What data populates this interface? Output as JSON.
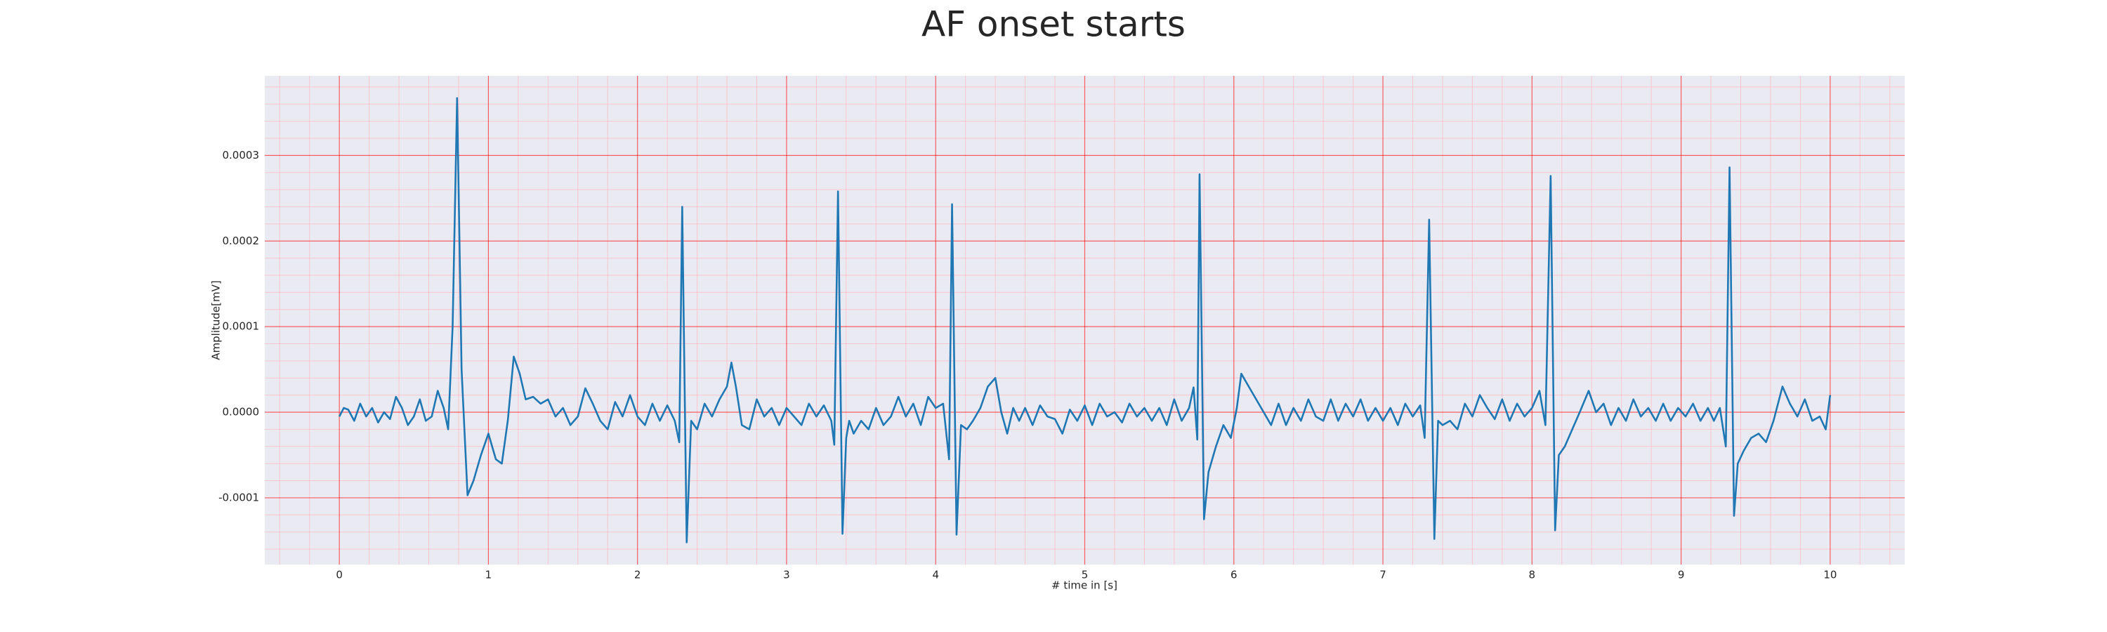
{
  "chart_data": {
    "type": "line",
    "title": "AF onset starts",
    "x_label": "# time in [s]",
    "y_label": "Amplitude[mV]",
    "color": "#1f77b4",
    "grid": true,
    "minor_grid": true,
    "xlim": [
      -0.5,
      10.5
    ],
    "ylim": [
      -0.000178,
      0.000393
    ],
    "xticks": [
      0,
      1,
      2,
      3,
      4,
      5,
      6,
      7,
      8,
      9,
      10
    ],
    "yticks": [
      -0.0001,
      {
        "value": 0,
        "label": "0.0000"
      },
      0.0001,
      0.0002,
      0.0003
    ],
    "x": [
      0,
      0.03,
      0.06,
      0.1,
      0.14,
      0.18,
      0.22,
      0.26,
      0.3,
      0.34,
      0.38,
      0.42,
      0.46,
      0.5,
      0.54,
      0.58,
      0.62,
      0.66,
      0.7,
      0.73,
      0.76,
      0.79,
      0.82,
      0.86,
      0.9,
      0.95,
      1.0,
      1.05,
      1.09,
      1.13,
      1.17,
      1.21,
      1.25,
      1.3,
      1.35,
      1.4,
      1.45,
      1.5,
      1.55,
      1.6,
      1.65,
      1.7,
      1.75,
      1.8,
      1.85,
      1.9,
      1.95,
      2.0,
      2.05,
      2.1,
      2.15,
      2.2,
      2.25,
      2.28,
      2.3,
      2.33,
      2.36,
      2.4,
      2.45,
      2.5,
      2.55,
      2.6,
      2.63,
      2.66,
      2.7,
      2.75,
      2.8,
      2.85,
      2.9,
      2.95,
      3.0,
      3.05,
      3.1,
      3.15,
      3.2,
      3.25,
      3.3,
      3.32,
      3.345,
      3.375,
      3.4,
      3.42,
      3.45,
      3.5,
      3.55,
      3.6,
      3.65,
      3.7,
      3.75,
      3.8,
      3.85,
      3.9,
      3.95,
      4.0,
      4.05,
      4.09,
      4.11,
      4.14,
      4.17,
      4.21,
      4.25,
      4.3,
      4.35,
      4.4,
      4.44,
      4.48,
      4.52,
      4.56,
      4.6,
      4.65,
      4.7,
      4.75,
      4.8,
      4.85,
      4.9,
      4.95,
      5.0,
      5.05,
      5.1,
      5.15,
      5.2,
      5.25,
      5.3,
      5.35,
      5.4,
      5.45,
      5.5,
      5.55,
      5.6,
      5.65,
      5.7,
      5.73,
      5.755,
      5.77,
      5.8,
      5.83,
      5.88,
      5.93,
      5.98,
      6.02,
      6.05,
      6.1,
      6.15,
      6.2,
      6.25,
      6.3,
      6.35,
      6.4,
      6.45,
      6.5,
      6.55,
      6.6,
      6.65,
      6.7,
      6.75,
      6.8,
      6.85,
      6.9,
      6.95,
      7.0,
      7.05,
      7.1,
      7.15,
      7.2,
      7.25,
      7.28,
      7.31,
      7.345,
      7.37,
      7.4,
      7.45,
      7.5,
      7.55,
      7.6,
      7.65,
      7.7,
      7.75,
      7.8,
      7.85,
      7.9,
      7.95,
      8.0,
      8.05,
      8.09,
      8.125,
      8.155,
      8.18,
      8.22,
      8.27,
      8.32,
      8.38,
      8.43,
      8.48,
      8.53,
      8.58,
      8.63,
      8.68,
      8.73,
      8.78,
      8.83,
      8.88,
      8.93,
      8.98,
      9.03,
      9.08,
      9.13,
      9.18,
      9.22,
      9.26,
      9.3,
      9.325,
      9.355,
      9.38,
      9.42,
      9.47,
      9.52,
      9.57,
      9.62,
      9.68,
      9.73,
      9.78,
      9.83,
      9.88,
      9.93,
      9.97,
      10.0
    ],
    "values": [
      -5e-06,
      5e-06,
      3e-06,
      -1e-05,
      1e-05,
      -5e-06,
      5e-06,
      -1.2e-05,
      0,
      -8e-06,
      1.8e-05,
      5e-06,
      -1.5e-05,
      -5e-06,
      1.5e-05,
      -1e-05,
      -5e-06,
      2.5e-05,
      5e-06,
      -2e-05,
      0.0001,
      0.000367,
      5e-05,
      -9.7e-05,
      -8e-05,
      -5e-05,
      -2.5e-05,
      -5.5e-05,
      -6e-05,
      -1e-05,
      6.5e-05,
      4.5e-05,
      1.5e-05,
      1.8e-05,
      1e-05,
      1.5e-05,
      -5e-06,
      5e-06,
      -1.5e-05,
      -5e-06,
      2.8e-05,
      1e-05,
      -1e-05,
      -2e-05,
      1.2e-05,
      -5e-06,
      2e-05,
      -5e-06,
      -1.5e-05,
      1e-05,
      -1e-05,
      8e-06,
      -1e-05,
      -3.5e-05,
      0.00024,
      -0.000152,
      -1e-05,
      -2e-05,
      1e-05,
      -5e-06,
      1.5e-05,
      3e-05,
      5.8e-05,
      3e-05,
      -1.5e-05,
      -2e-05,
      1.5e-05,
      -5e-06,
      5e-06,
      -1.5e-05,
      5e-06,
      -5e-06,
      -1.5e-05,
      1e-05,
      -5e-06,
      8e-06,
      -1e-05,
      -3.8e-05,
      0.000258,
      -0.000142,
      -3e-05,
      -1e-05,
      -2.5e-05,
      -1e-05,
      -2e-05,
      5e-06,
      -1.5e-05,
      -5e-06,
      1.8e-05,
      -5e-06,
      1e-05,
      -1.5e-05,
      1.8e-05,
      5e-06,
      1e-05,
      -5.5e-05,
      0.000243,
      -0.000143,
      -1.5e-05,
      -2e-05,
      -1e-05,
      5e-06,
      3e-05,
      4e-05,
      0,
      -2.5e-05,
      5e-06,
      -1e-05,
      5e-06,
      -1.5e-05,
      8e-06,
      -5e-06,
      -8e-06,
      -2.5e-05,
      3e-06,
      -1e-05,
      8e-06,
      -1.5e-05,
      1e-05,
      -5e-06,
      0,
      -1.2e-05,
      1e-05,
      -5e-06,
      5e-06,
      -1e-05,
      5e-06,
      -1.5e-05,
      1.5e-05,
      -1e-05,
      5e-06,
      2.9e-05,
      -3.2e-05,
      0.000278,
      -0.000125,
      -7e-05,
      -4e-05,
      -1.5e-05,
      -3e-05,
      5e-06,
      4.5e-05,
      3e-05,
      1.5e-05,
      0,
      -1.5e-05,
      1e-05,
      -1.5e-05,
      5e-06,
      -1e-05,
      1.5e-05,
      -5e-06,
      -1e-05,
      1.5e-05,
      -1e-05,
      1e-05,
      -5e-06,
      1.5e-05,
      -1e-05,
      5e-06,
      -1e-05,
      5e-06,
      -1.5e-05,
      1e-05,
      -5e-06,
      8e-06,
      -3e-05,
      0.000225,
      -0.000148,
      -1e-05,
      -1.5e-05,
      -1e-05,
      -2e-05,
      1e-05,
      -5e-06,
      2e-05,
      5e-06,
      -8e-06,
      1.5e-05,
      -1e-05,
      1e-05,
      -5e-06,
      5e-06,
      2.5e-05,
      -1.5e-05,
      0.000276,
      -0.000138,
      -5e-05,
      -4e-05,
      -2e-05,
      0,
      2.5e-05,
      0,
      1e-05,
      -1.5e-05,
      5e-06,
      -1e-05,
      1.5e-05,
      -5e-06,
      5e-06,
      -1e-05,
      1e-05,
      -1e-05,
      5e-06,
      -5e-06,
      1e-05,
      -1e-05,
      5e-06,
      -1e-05,
      5e-06,
      -4e-05,
      0.000286,
      -0.000121,
      -6e-05,
      -4.5e-05,
      -3e-05,
      -2.5e-05,
      -3.5e-05,
      -1e-05,
      3e-05,
      1e-05,
      -5e-06,
      1.5e-05,
      -1e-05,
      -5e-06,
      -2e-05,
      2e-05
    ]
  }
}
